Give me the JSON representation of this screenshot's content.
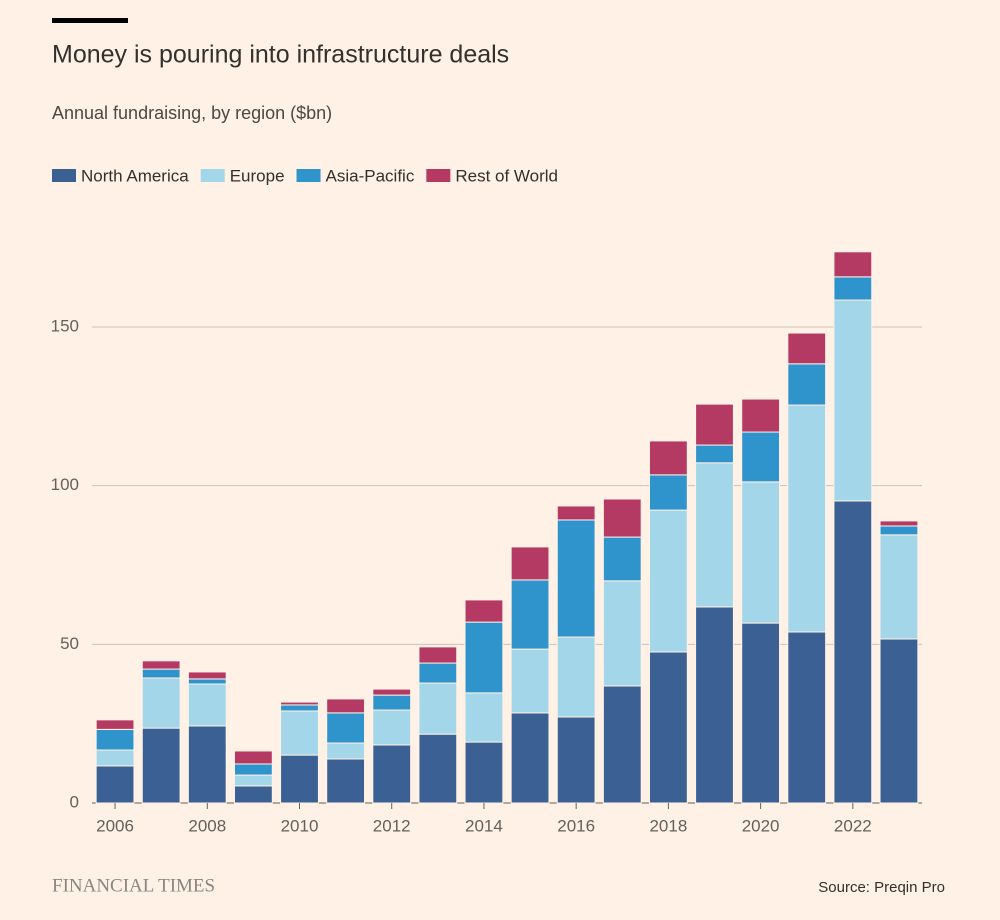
{
  "chart_data": {
    "type": "stacked-bar",
    "title": "Money is pouring into infrastructure deals",
    "subtitle": "Annual fundraising, by region ($bn)",
    "source": "Source: Preqin Pro",
    "brand": "FINANCIAL TIMES",
    "categories": [
      "2006",
      null,
      "2008",
      null,
      "2010",
      null,
      "2012",
      null,
      "2014",
      null,
      "2016",
      null,
      "2018",
      null,
      "2020",
      null,
      "2022",
      null
    ],
    "series": [
      {
        "name": "North America",
        "color": "#3b6194",
        "values": [
          11.7,
          23.6,
          24.3,
          5.4,
          15.1,
          13.9,
          18.3,
          21.7,
          19.2,
          28.4,
          27.1,
          36.9,
          47.6,
          61.8,
          56.7,
          53.9,
          95.2,
          51.7
        ]
      },
      {
        "name": "Europe",
        "color": "#a3d6e9",
        "values": [
          5.0,
          15.8,
          13.2,
          3.4,
          13.9,
          5.0,
          11.0,
          16.1,
          15.5,
          20.1,
          25.2,
          33.1,
          44.7,
          45.4,
          44.5,
          71.5,
          63.3,
          32.8
        ]
      },
      {
        "name": "Asia-Pacific",
        "color": "#2f93cc",
        "values": [
          6.5,
          2.8,
          1.6,
          3.5,
          1.9,
          9.5,
          4.7,
          6.3,
          22.3,
          21.8,
          36.9,
          13.8,
          11.1,
          5.6,
          15.7,
          13.0,
          7.3,
          2.8
        ]
      },
      {
        "name": "Rest of World",
        "color": "#b43a63",
        "values": [
          3.0,
          2.6,
          2.2,
          4.1,
          0.9,
          4.4,
          1.9,
          5.1,
          7.0,
          10.4,
          4.4,
          12.0,
          10.7,
          12.9,
          10.4,
          9.7,
          7.9,
          1.6
        ]
      }
    ],
    "ylim": [
      0,
      180
    ],
    "yticks": [
      0,
      50,
      100,
      150
    ],
    "grid": true,
    "legend": "top-left"
  }
}
